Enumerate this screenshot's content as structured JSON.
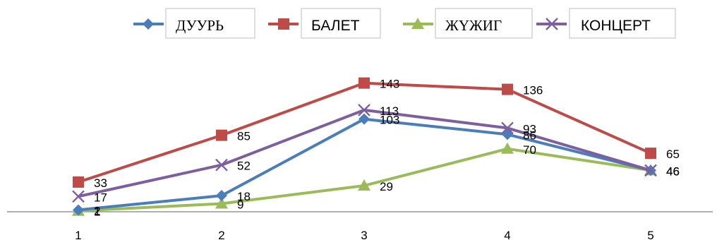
{
  "chart_data": {
    "type": "line",
    "categories": [
      "1",
      "2",
      "3",
      "4",
      "5"
    ],
    "series": [
      {
        "name": "ДУУРЬ",
        "values": [
          2,
          18,
          103,
          86,
          46
        ],
        "color": "#4a7ebb",
        "marker": "diamond"
      },
      {
        "name": "БАЛЕТ",
        "values": [
          33,
          85,
          143,
          136,
          65
        ],
        "color": "#be4b48",
        "marker": "square"
      },
      {
        "name": "ЖҮЖИГ",
        "values": [
          1,
          9,
          29,
          70,
          46
        ],
        "color": "#9bbb59",
        "marker": "triangle"
      },
      {
        "name": "КОНЦЕРТ",
        "values": [
          17,
          52,
          113,
          93,
          46
        ],
        "color": "#7d5fa0",
        "marker": "x"
      }
    ],
    "ylim": [
      0,
      160
    ],
    "grid": false,
    "legend_position": "top",
    "data_labels": true
  }
}
